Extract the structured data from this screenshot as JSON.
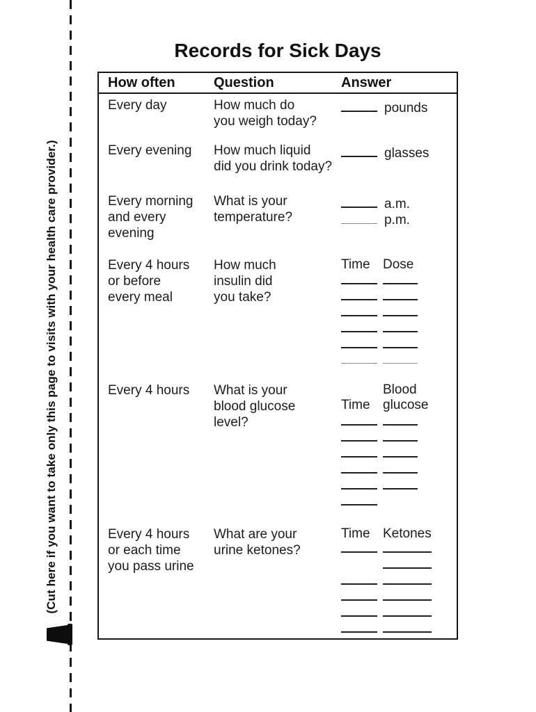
{
  "page": {
    "title": "Records for Sick Days",
    "cut_note": "(Cut here if you want to take only this page to visits with your health care provider.)"
  },
  "colors": {
    "ink": "#1b1b1b",
    "paper": "#ffffff",
    "thin_rule": "#8a8a8a"
  },
  "icons": {
    "cut_marker": "scissors-icon"
  },
  "table": {
    "headers": [
      "How often",
      "Question",
      "Answer"
    ],
    "rows": [
      {
        "how_often": [
          "Every day"
        ],
        "question": [
          "How much do",
          "you weigh today?"
        ],
        "answer": {
          "type": "blank_label",
          "label": "pounds"
        }
      },
      {
        "how_often": [
          "Every evening"
        ],
        "question": [
          "How much liquid",
          "did you drink today?"
        ],
        "answer": {
          "type": "blank_label",
          "label": "glasses"
        }
      },
      {
        "how_often": [
          "Every morning",
          "and every",
          "evening"
        ],
        "question": [
          "What is your",
          "temperature?"
        ],
        "answer": {
          "type": "blank_label_list",
          "items": [
            {
              "label": "a.m.",
              "thin": false
            },
            {
              "label": "p.m.",
              "thin": true
            }
          ]
        }
      },
      {
        "how_often": [
          "Every 4 hours",
          "or before",
          "every meal"
        ],
        "question": [
          "How much",
          "insulin did",
          "you take?"
        ],
        "answer": {
          "type": "log_grid",
          "col1": "Time",
          "col2": [
            "Dose"
          ],
          "lines": [
            [
              1,
              1
            ],
            [
              1,
              1
            ],
            [
              1,
              1
            ],
            [
              1,
              1
            ],
            [
              1,
              1
            ],
            [
              2,
              2
            ]
          ]
        }
      },
      {
        "how_often": [
          "Every 4 hours"
        ],
        "question": [
          "What is your",
          "blood glucose",
          "level?"
        ],
        "answer": {
          "type": "log_grid",
          "col1": "Time",
          "col2": [
            "Blood",
            "glucose"
          ],
          "lines": [
            [
              1,
              1
            ],
            [
              1,
              1
            ],
            [
              1,
              1
            ],
            [
              1,
              1
            ],
            [
              1,
              1
            ],
            [
              1,
              0
            ]
          ]
        }
      },
      {
        "how_often": [
          "Every 4 hours",
          "or each time",
          "you pass urine"
        ],
        "question": [
          "What are your",
          "urine ketones?"
        ],
        "answer": {
          "type": "log_grid",
          "col1": "Time",
          "col2": [
            "Ketones"
          ],
          "lines": [
            [
              1,
              1
            ],
            [
              0,
              1
            ],
            [
              1,
              1
            ],
            [
              1,
              1
            ],
            [
              1,
              1
            ],
            [
              1,
              1
            ]
          ]
        }
      }
    ]
  }
}
